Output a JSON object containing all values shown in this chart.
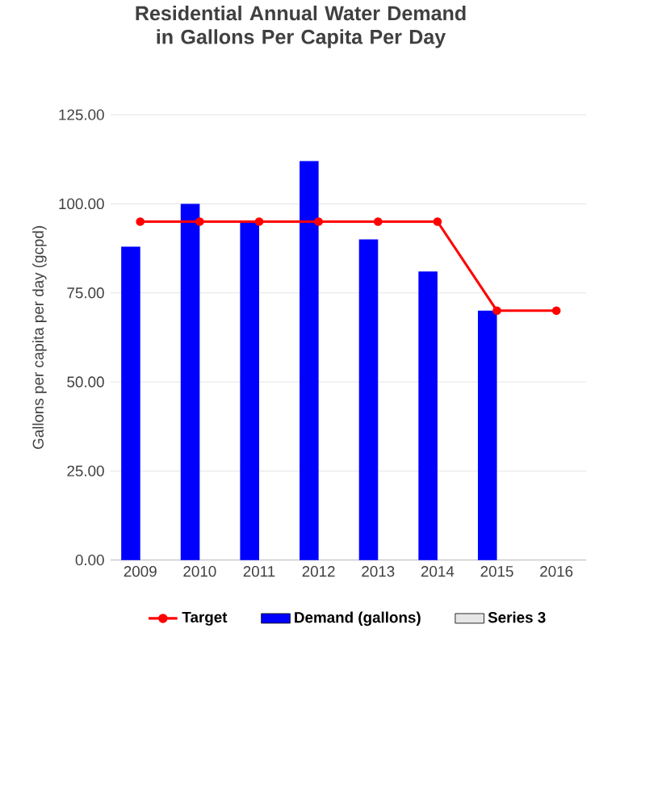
{
  "chart_data": {
    "type": "bar",
    "title": "Residential Annual Water Demand in Gallons Per Capita Per Day",
    "ylabel": "Gallons per capita per day (gcpd)",
    "categories": [
      "2009",
      "2010",
      "2011",
      "2012",
      "2013",
      "2014",
      "2015",
      "2016"
    ],
    "series": [
      {
        "name": "Target",
        "type": "line",
        "color": "#ff0000",
        "marker": "circle",
        "values": [
          95,
          95,
          95,
          95,
          95,
          95,
          70,
          70
        ]
      },
      {
        "name": "Demand (gallons)",
        "color": "#0000ff",
        "values": [
          88,
          100,
          95,
          112,
          90,
          81,
          70,
          null
        ]
      },
      {
        "name": "Series 3",
        "color": "#e6e6e6",
        "values": [
          null,
          null,
          null,
          null,
          null,
          null,
          null,
          null
        ]
      }
    ],
    "ylim": [
      0,
      125
    ],
    "yticks": [
      {
        "value": 0,
        "label": "0.00"
      },
      {
        "value": 25,
        "label": "25.00"
      },
      {
        "value": 50,
        "label": "50.00"
      },
      {
        "value": 75,
        "label": "75.00"
      },
      {
        "value": 100,
        "label": "100.00"
      },
      {
        "value": 125,
        "label": "125.00"
      }
    ],
    "grid": "y",
    "legend": "bottom"
  }
}
